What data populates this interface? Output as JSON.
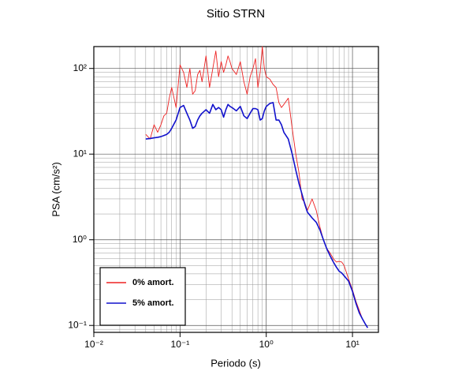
{
  "chart_data": {
    "type": "line",
    "title": "Sitio STRN",
    "x_label": "Periodo (s)",
    "y_label": "PSA (cm/s²)",
    "xscale": "log",
    "yscale": "log",
    "grid": true,
    "legend": "lower left",
    "xlim": [
      0.01,
      20
    ],
    "ylim": [
      0.083,
      180
    ],
    "xticks": [
      {
        "value": 0.01,
        "label": "10⁻²"
      },
      {
        "value": 0.1,
        "label": "10⁻¹"
      },
      {
        "value": 1,
        "label": "10⁰"
      },
      {
        "value": 10,
        "label": "10¹"
      }
    ],
    "yticks": [
      {
        "value": 0.1,
        "label": "10⁻¹"
      },
      {
        "value": 1,
        "label": "10⁰"
      },
      {
        "value": 10,
        "label": "10¹"
      },
      {
        "value": 100,
        "label": "10²"
      }
    ],
    "xminorticks": [
      0.02,
      0.03,
      0.04,
      0.05,
      0.06,
      0.07,
      0.08,
      0.09,
      0.2,
      0.3,
      0.4,
      0.5,
      0.6,
      0.7,
      0.8,
      0.9,
      2,
      3,
      4,
      5,
      6,
      7,
      8,
      9
    ],
    "yminorticks": [
      0.09,
      0.2,
      0.3,
      0.4,
      0.5,
      0.6,
      0.7,
      0.8,
      0.9,
      2,
      3,
      4,
      5,
      6,
      7,
      8,
      9,
      20,
      30,
      40,
      50,
      60,
      70,
      80,
      90
    ],
    "x": [
      0.04,
      0.045,
      0.05,
      0.055,
      0.06,
      0.065,
      0.07,
      0.075,
      0.08,
      0.09,
      0.1,
      0.11,
      0.12,
      0.13,
      0.14,
      0.15,
      0.16,
      0.17,
      0.18,
      0.2,
      0.22,
      0.24,
      0.26,
      0.28,
      0.3,
      0.32,
      0.34,
      0.36,
      0.38,
      0.4,
      0.45,
      0.5,
      0.55,
      0.6,
      0.65,
      0.7,
      0.75,
      0.8,
      0.85,
      0.9,
      0.95,
      1.0,
      1.1,
      1.2,
      1.3,
      1.4,
      1.5,
      1.6,
      1.8,
      2.0,
      2.2,
      2.4,
      2.6,
      2.8,
      3.0,
      3.4,
      3.8,
      4.2,
      4.6,
      5.0,
      5.5,
      6.0,
      6.5,
      7.0,
      7.5,
      8.0,
      9.0,
      10,
      11,
      12,
      13,
      14,
      15
    ],
    "series": [
      {
        "name": "0% amort.",
        "color": "#ee2222",
        "width": 0.9,
        "values": [
          17,
          15,
          22,
          18,
          22,
          28,
          30,
          45,
          60,
          35,
          110,
          90,
          60,
          100,
          50,
          55,
          85,
          95,
          70,
          140,
          60,
          100,
          160,
          80,
          120,
          90,
          110,
          140,
          120,
          100,
          85,
          120,
          70,
          50,
          80,
          100,
          130,
          60,
          90,
          180,
          100,
          80,
          75,
          65,
          60,
          40,
          35,
          38,
          45,
          20,
          10,
          6,
          3,
          2.7,
          2.2,
          3,
          2.2,
          1.4,
          1.0,
          0.8,
          0.7,
          0.6,
          0.55,
          0.56,
          0.55,
          0.5,
          0.35,
          0.26,
          0.19,
          0.15,
          0.12,
          0.105,
          0.094
        ]
      },
      {
        "name": "5% amort.",
        "color": "#1111cc",
        "width": 1.6,
        "values": [
          15,
          15.2,
          15.5,
          15.7,
          16,
          16.5,
          17,
          18,
          20,
          25,
          35,
          37,
          30,
          25,
          20,
          21,
          25,
          28,
          30,
          33,
          30,
          38,
          33,
          35,
          33,
          27,
          33,
          38,
          36,
          35,
          32,
          36,
          28,
          26,
          30,
          34,
          34,
          33,
          25,
          26,
          32,
          36,
          39,
          40,
          25,
          25,
          22,
          18,
          15,
          10,
          6.5,
          4.5,
          3.4,
          2.6,
          2.1,
          1.8,
          1.6,
          1.3,
          1.0,
          0.8,
          0.65,
          0.55,
          0.48,
          0.43,
          0.41,
          0.38,
          0.33,
          0.25,
          0.18,
          0.14,
          0.12,
          0.105,
          0.094
        ]
      }
    ]
  }
}
